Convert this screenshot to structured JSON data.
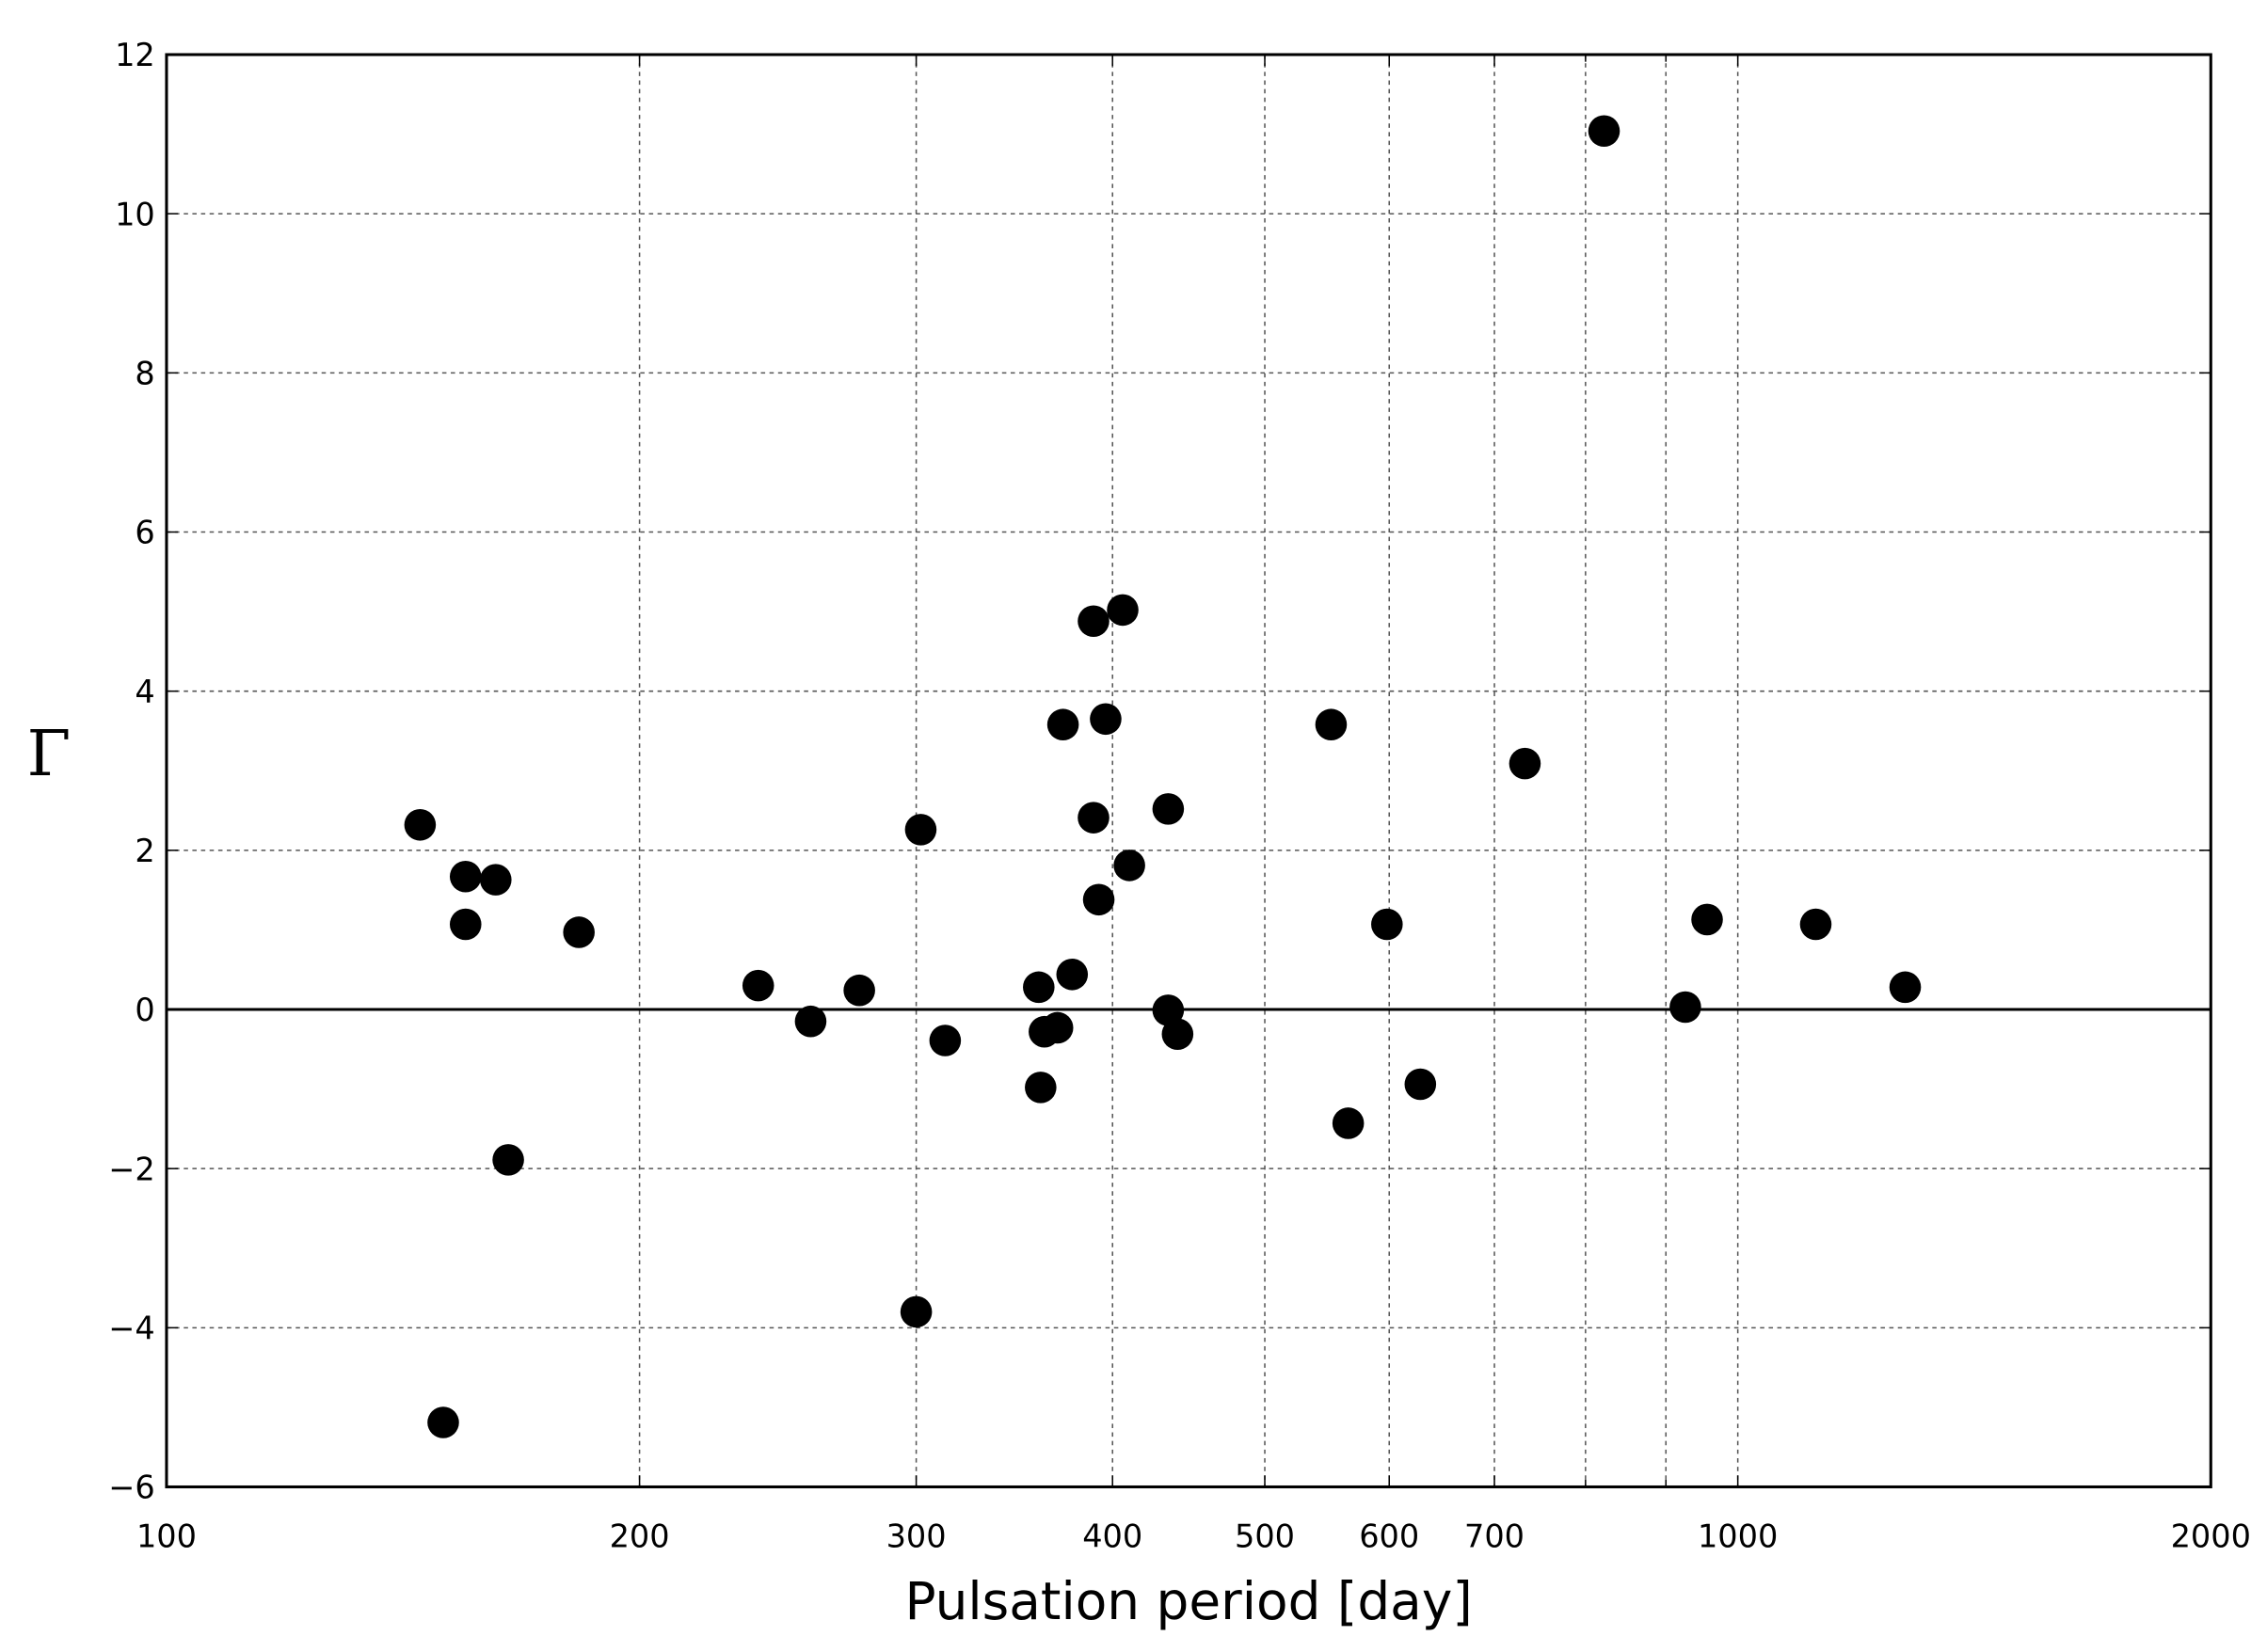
{
  "chart_data": {
    "type": "scatter",
    "x_label": "Pulsation period  [day]",
    "y_label": "Γ",
    "x_scale": "log",
    "xlim": [
      100,
      2000
    ],
    "ylim": [
      -6,
      12
    ],
    "xticks": [
      100,
      200,
      300,
      400,
      500,
      600,
      700,
      1000,
      2000
    ],
    "x_minor_ticks": [
      800,
      900
    ],
    "yticks": [
      {
        "value": -6,
        "label": "−6"
      },
      {
        "value": -4,
        "label": "−4"
      },
      {
        "value": -2,
        "label": "−2"
      },
      0,
      2,
      4,
      6,
      8,
      10,
      12
    ],
    "grid": true,
    "hline": 0,
    "color": "#000000",
    "x": [
      145,
      155,
      155,
      162,
      165,
      150,
      183,
      238,
      257,
      276,
      302,
      300,
      313,
      359,
      362,
      369,
      360,
      372,
      377,
      389,
      389,
      392,
      396,
      406,
      410,
      434,
      434,
      440,
      551,
      565,
      598,
      628,
      732,
      822,
      926,
      956,
      1121,
      1278
    ],
    "values": [
      2.32,
      1.67,
      1.07,
      1.63,
      -1.89,
      -5.19,
      0.97,
      0.3,
      -0.15,
      0.24,
      2.26,
      -3.8,
      -0.39,
      0.28,
      -0.28,
      -0.23,
      -0.98,
      3.58,
      0.44,
      4.88,
      2.41,
      1.38,
      3.65,
      5.02,
      1.81,
      2.52,
      -0.01,
      -0.31,
      3.58,
      -1.43,
      1.07,
      -0.94,
      3.09,
      11.04,
      0.03,
      1.13,
      1.07,
      0.28
    ]
  }
}
